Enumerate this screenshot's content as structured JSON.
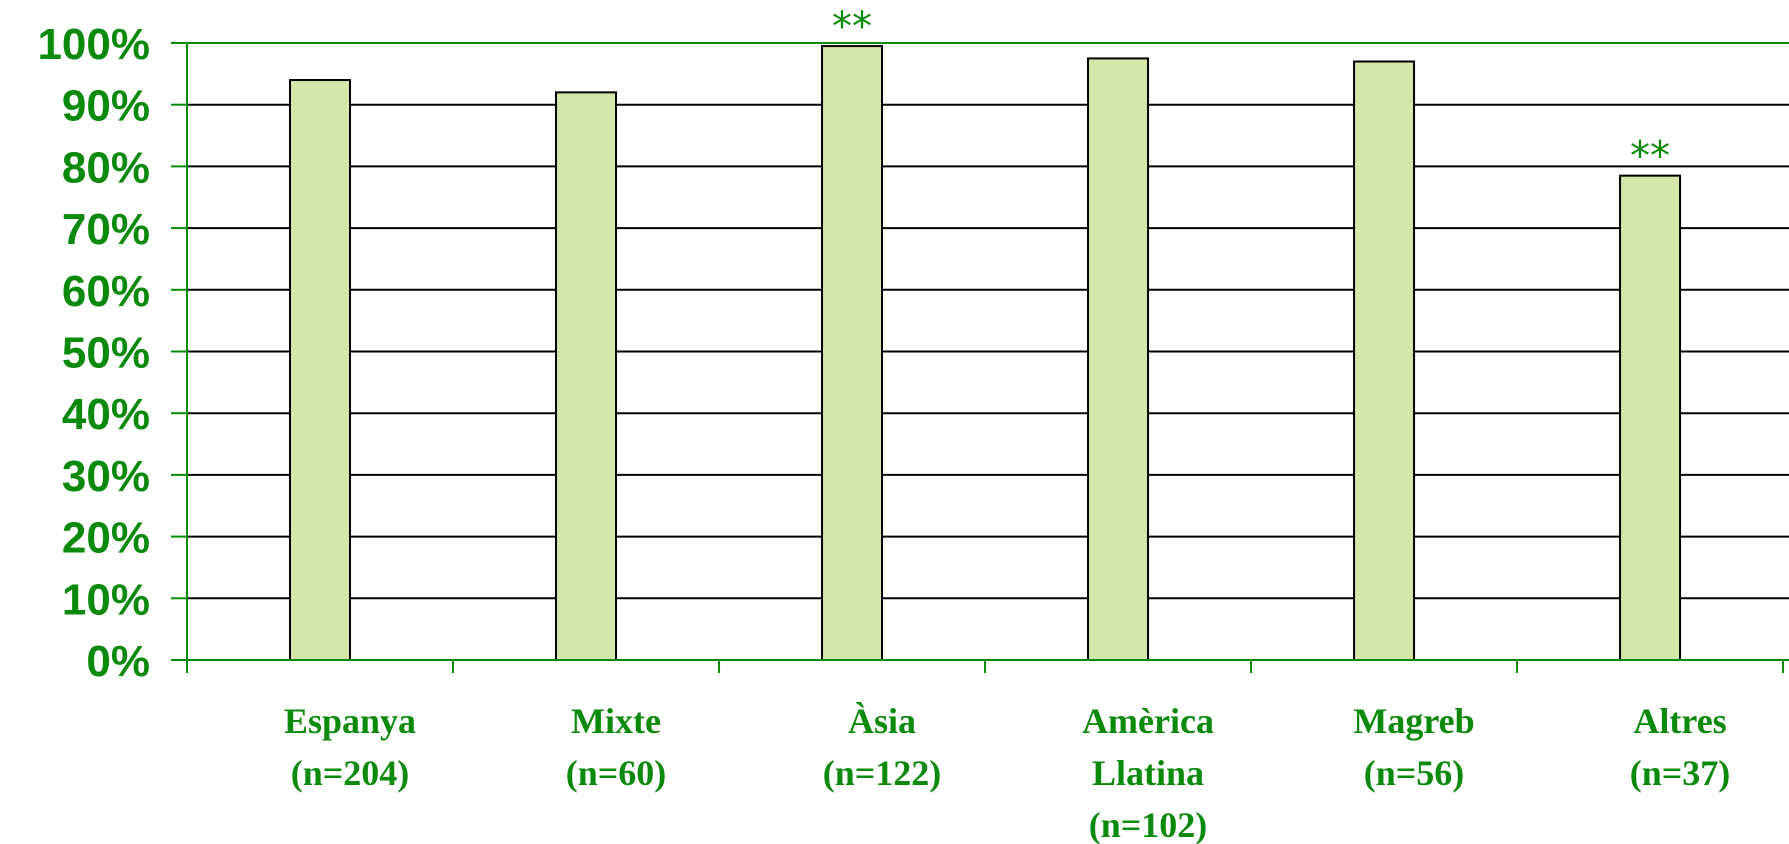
{
  "colors": {
    "axis_text": "#0a8a0a",
    "axis_line": "#0a8a0a",
    "bar_fill": "#d4e6a8",
    "bar_stroke": "#000000",
    "grid": "#000000"
  },
  "chart_data": {
    "type": "bar",
    "categories": [
      [
        "Espanya",
        "(n=204)"
      ],
      [
        "Mixte",
        "(n=60)"
      ],
      [
        "Àsia",
        "(n=122)"
      ],
      [
        "Amèrica",
        "Llatina",
        "(n=102)"
      ],
      [
        "Magreb",
        "(n=56)"
      ],
      [
        "Altres",
        "(n=37)"
      ]
    ],
    "values": [
      94,
      92,
      99.5,
      97.5,
      97,
      78.5
    ],
    "annotations": [
      "",
      "",
      "**",
      "",
      "",
      "**"
    ],
    "ylim": [
      0,
      100
    ],
    "yticks": [
      "0%",
      "10%",
      "20%",
      "30%",
      "40%",
      "50%",
      "60%",
      "70%",
      "80%",
      "90%",
      "100%"
    ],
    "grid": true,
    "legend": "none"
  }
}
